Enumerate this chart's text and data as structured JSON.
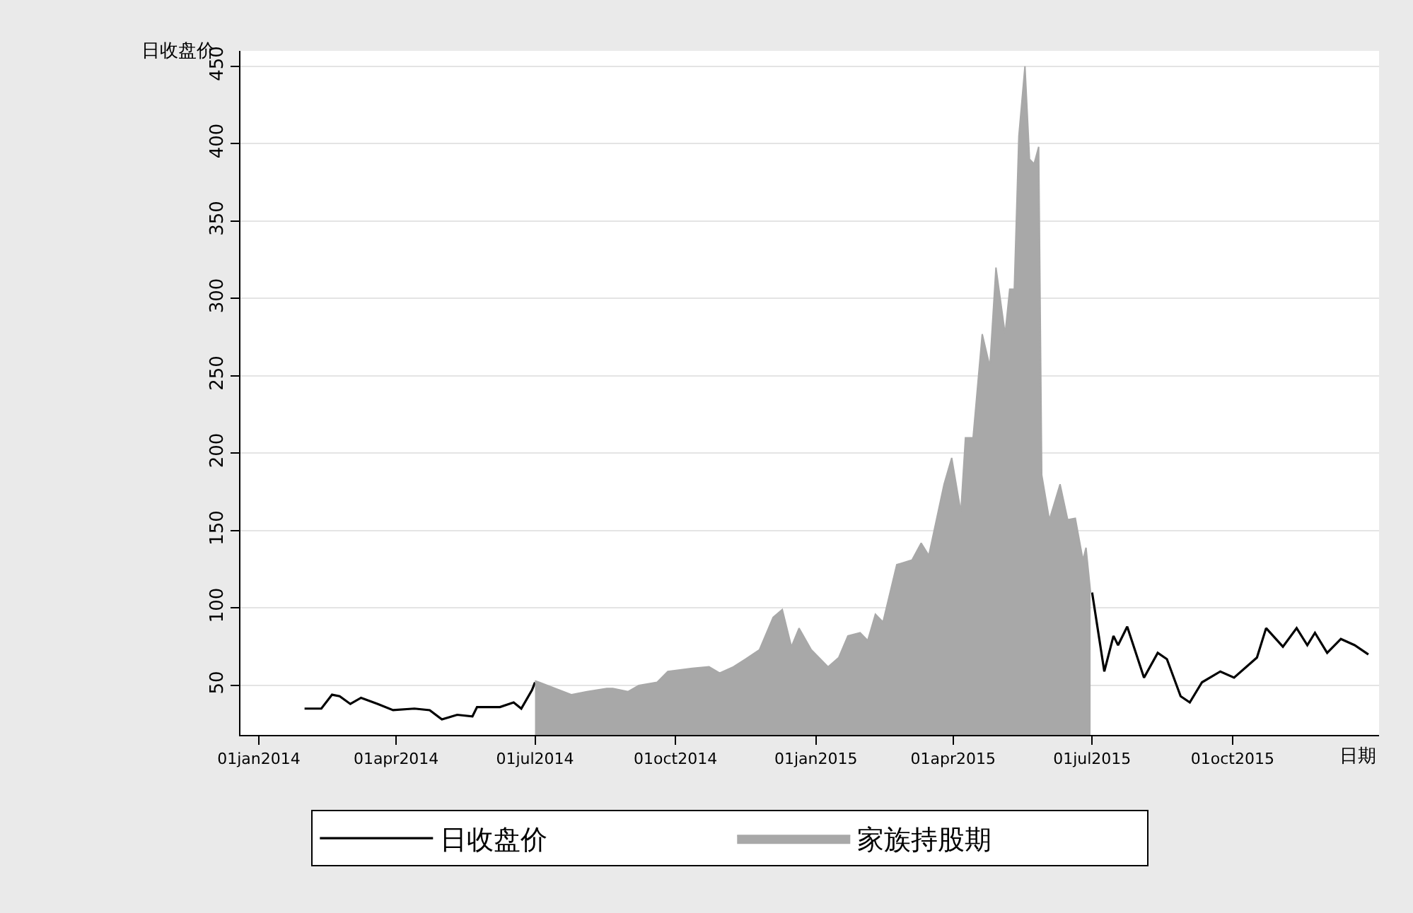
{
  "chart_data": {
    "type": "line",
    "xlabel": "日期",
    "ylabel": "日收盘价",
    "series": [
      {
        "name": "日收盘价",
        "color": "#000000",
        "x": [
          "2014-01-31",
          "2014-02-11",
          "2014-02-18",
          "2014-02-23",
          "2014-03-02",
          "2014-03-09",
          "2014-03-20",
          "2014-03-30",
          "2014-04-13",
          "2014-04-23",
          "2014-05-01",
          "2014-05-11",
          "2014-05-21",
          "2014-05-24",
          "2014-06-08",
          "2014-06-17",
          "2014-06-22",
          "2014-06-29",
          "2014-07-01",
          "2015-01-01",
          "2015-07-01",
          "2015-07-09",
          "2015-07-15",
          "2015-07-18",
          "2015-07-24",
          "2015-08-04",
          "2015-08-13",
          "2015-08-19",
          "2015-08-28",
          "2015-09-03",
          "2015-09-11",
          "2015-09-23",
          "2015-10-02",
          "2015-10-17",
          "2015-10-23",
          "2015-11-03",
          "2015-11-12",
          "2015-11-19",
          "2015-11-24",
          "2015-12-02",
          "2015-12-11",
          "2015-12-20",
          "2015-12-29"
        ],
        "values": [
          35,
          35,
          44,
          43,
          38,
          42,
          38,
          34,
          35,
          34,
          28,
          31,
          30,
          36,
          36,
          39,
          35,
          47,
          52,
          null,
          110,
          59,
          82,
          76,
          88,
          55,
          71,
          67,
          43,
          39,
          52,
          59,
          55,
          68,
          87,
          75,
          87,
          76,
          84,
          71,
          80,
          76,
          70
        ]
      },
      {
        "name": "家族持股期",
        "type": "area",
        "color": "#a8a8a8",
        "x": [
          "2014-07-01",
          "2014-07-25",
          "2014-08-04",
          "2014-08-17",
          "2014-08-21",
          "2014-08-31",
          "2014-09-07",
          "2014-09-19",
          "2014-09-26",
          "2014-10-12",
          "2014-10-23",
          "2014-10-30",
          "2014-11-08",
          "2014-11-16",
          "2014-11-25",
          "2014-12-04",
          "2014-12-10",
          "2014-12-16",
          "2014-12-21",
          "2014-12-29",
          "2015-01-09",
          "2015-01-16",
          "2015-01-22",
          "2015-01-30",
          "2015-02-04",
          "2015-02-09",
          "2015-02-14",
          "2015-02-23",
          "2015-03-05",
          "2015-03-11",
          "2015-03-16",
          "2015-03-26",
          "2015-03-31",
          "2015-04-06",
          "2015-04-09",
          "2015-04-14",
          "2015-04-20",
          "2015-04-25",
          "2015-04-29",
          "2015-05-05",
          "2015-05-08",
          "2015-05-11",
          "2015-05-14",
          "2015-05-18",
          "2015-05-21",
          "2015-05-24",
          "2015-05-27",
          "2015-05-29",
          "2015-06-03",
          "2015-06-10",
          "2015-06-15",
          "2015-06-20",
          "2015-06-25",
          "2015-06-27",
          "2015-06-30"
        ],
        "values": [
          53,
          44,
          46,
          48,
          48,
          46,
          50,
          52,
          59,
          61,
          62,
          58,
          62,
          67,
          73,
          94,
          99,
          75,
          87,
          73,
          62,
          68,
          82,
          84,
          79,
          96,
          91,
          128,
          131,
          142,
          134,
          180,
          197,
          162,
          210,
          210,
          277,
          256,
          320,
          277,
          306,
          306,
          405,
          450,
          390,
          387,
          398,
          186,
          157,
          180,
          157,
          158,
          131,
          139,
          110
        ]
      }
    ],
    "xlim": [
      "2013-12-20",
      "2016-01-05"
    ],
    "xticks": [
      {
        "value": "2014-01-01",
        "label": "01jan2014"
      },
      {
        "value": "2014-04-01",
        "label": "01apr2014"
      },
      {
        "value": "2014-07-01",
        "label": "01jul2014"
      },
      {
        "value": "2014-10-01",
        "label": "01oct2014"
      },
      {
        "value": "2015-01-01",
        "label": "01jan2015"
      },
      {
        "value": "2015-04-01",
        "label": "01apr2015"
      },
      {
        "value": "2015-07-01",
        "label": "01jul2015"
      },
      {
        "value": "2015-10-01",
        "label": "01oct2015"
      }
    ],
    "ylim": [
      18,
      460
    ],
    "yticks": [
      50,
      100,
      150,
      200,
      250,
      300,
      350,
      400,
      450
    ],
    "grid": "y",
    "legend": "bottom"
  }
}
